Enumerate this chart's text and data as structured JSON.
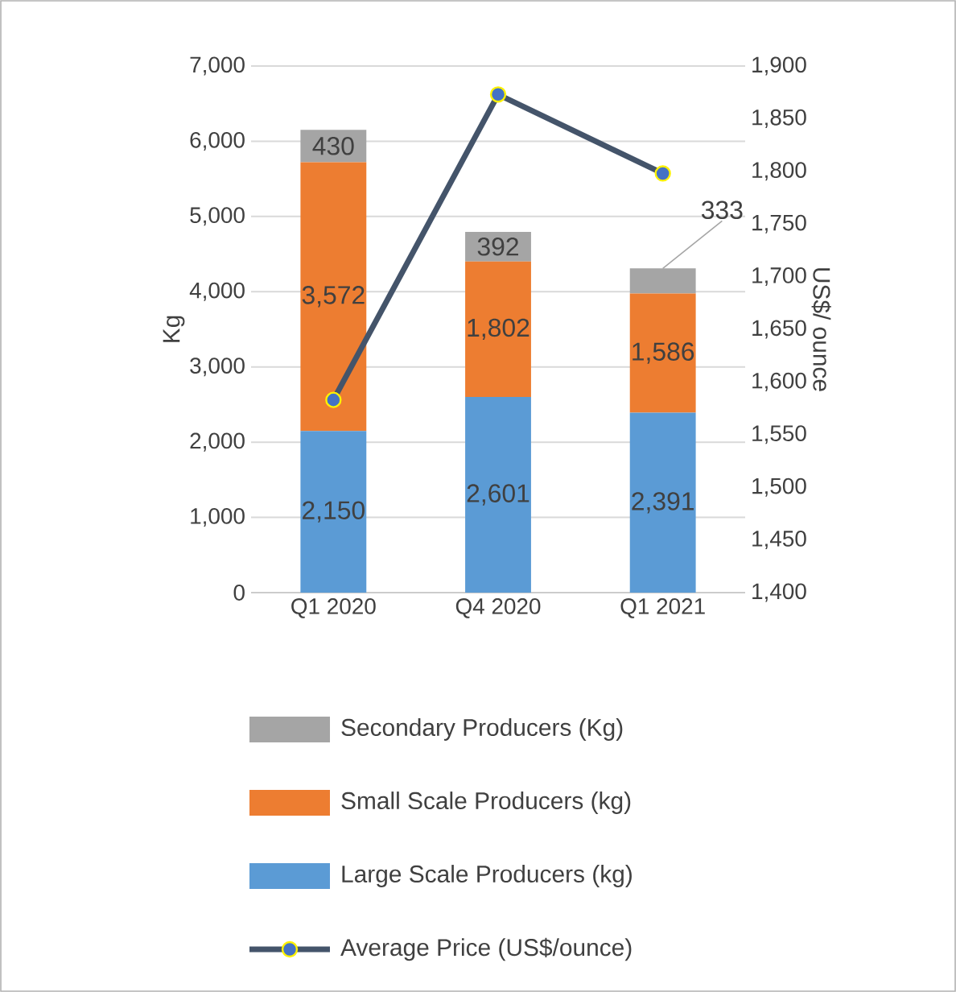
{
  "chart_data": {
    "type": "bar",
    "stacked": true,
    "categories": [
      "Q1 2020",
      "Q4 2020",
      "Q1 2021"
    ],
    "ylabel": "Kg",
    "y2label": "US$/ ounce",
    "ylim": [
      0,
      7000
    ],
    "yticks": [
      0,
      {
        "value": 1000,
        "label": "1,000"
      },
      {
        "value": 2000,
        "label": "2,000"
      },
      {
        "value": 3000,
        "label": "3,000"
      },
      {
        "value": 4000,
        "label": "4,000"
      },
      {
        "value": 5000,
        "label": "5,000"
      },
      {
        "value": 6000,
        "label": "6,000"
      },
      {
        "value": 7000,
        "label": "7,000"
      }
    ],
    "y2lim": [
      1400,
      1900
    ],
    "y2ticks": [
      {
        "value": 1400,
        "label": "1,400"
      },
      {
        "value": 1450,
        "label": "1,450"
      },
      {
        "value": 1500,
        "label": "1,500"
      },
      {
        "value": 1550,
        "label": "1,550"
      },
      {
        "value": 1600,
        "label": "1,600"
      },
      {
        "value": 1650,
        "label": "1,650"
      },
      {
        "value": 1700,
        "label": "1,700"
      },
      {
        "value": 1750,
        "label": "1,750"
      },
      {
        "value": 1800,
        "label": "1,800"
      },
      {
        "value": 1850,
        "label": "1,850"
      },
      {
        "value": 1900,
        "label": "1,900"
      }
    ],
    "grid": "y",
    "legend": "bottom",
    "series": [
      {
        "name": "Large Scale Producers (kg)",
        "color": "#5b9bd5",
        "values": [
          2150,
          2601,
          2391
        ],
        "value_labels": [
          "2,150",
          "2,601",
          "2,391"
        ]
      },
      {
        "name": "Small Scale Producers (kg)",
        "color": "#ed7d31",
        "values": [
          3572,
          1802,
          1586
        ],
        "value_labels": [
          "3,572",
          "1,802",
          "1,586"
        ]
      },
      {
        "name": "Secondary Producers (Kg)",
        "color": "#a5a5a5",
        "values": [
          430,
          392,
          333
        ],
        "value_labels": [
          "430",
          "392",
          "333"
        ]
      },
      {
        "name": "Average Price (US$/ounce)",
        "type": "line",
        "axis": "y2",
        "color": "#44546a",
        "marker": "circle",
        "values": [
          1583,
          1873,
          1798
        ]
      }
    ]
  }
}
